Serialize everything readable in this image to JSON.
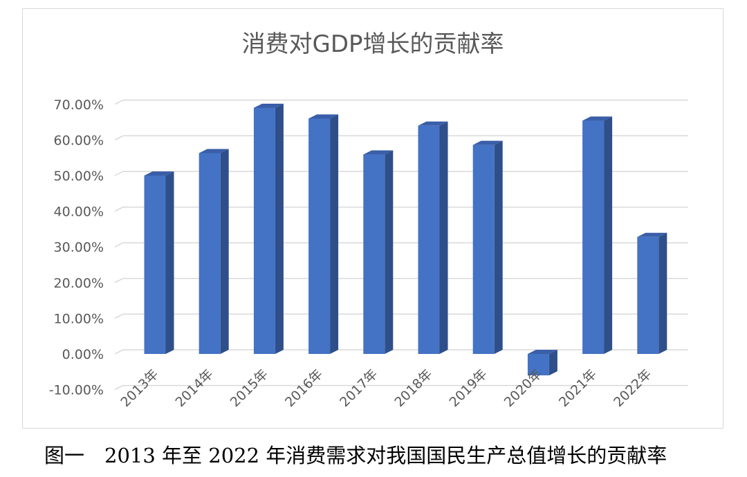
{
  "chart_data": {
    "type": "bar",
    "title": "消费对GDP增长的贡献率",
    "categories": [
      "2013年",
      "2014年",
      "2015年",
      "2016年",
      "2017年",
      "2018年",
      "2019年",
      "2020年",
      "2021年",
      "2022年"
    ],
    "series": [
      {
        "values": [
          50.0,
          56.3,
          69.0,
          66.0,
          55.9,
          64.0,
          58.6,
          -6.0,
          65.4,
          32.8
        ]
      }
    ],
    "ylim": [
      -10,
      70
    ],
    "y_ticks": [
      "-10.00%",
      "0.00%",
      "10.00%",
      "20.00%",
      "30.00%",
      "40.00%",
      "50.00%",
      "60.00%",
      "70.00%"
    ],
    "grid": true,
    "bar_style": "3d",
    "colors": {
      "bar_front": "#4472c4",
      "bar_side": "#2f4f8a",
      "bar_top": "#3a5ea8",
      "grid": "#d9d9d9",
      "text": "#595959"
    }
  },
  "caption": "图一　2013 年至 2022 年消费需求对我国国民生产总值增长的贡献率"
}
